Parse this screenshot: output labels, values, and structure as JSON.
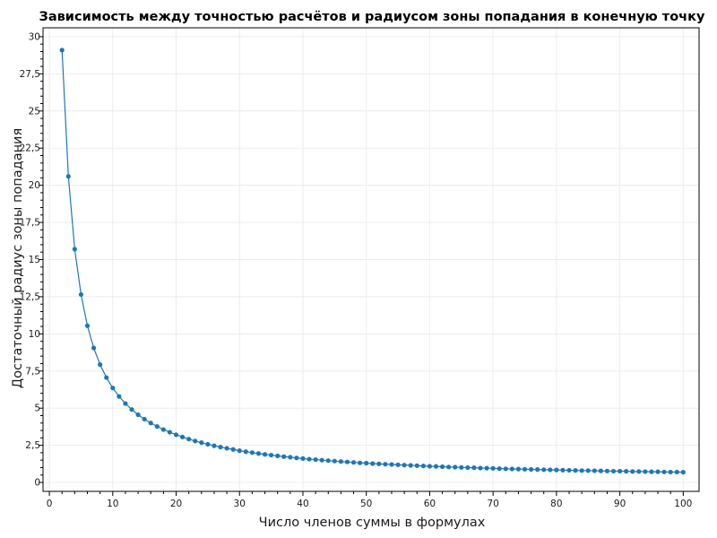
{
  "chart_data": {
    "type": "line",
    "title": "Зависимость между точностью расчётов и радиусом зоны попадания в конечную точку",
    "xlabel": "Число членов суммы в формулах",
    "ylabel": "Достаточный радиус зоны попадания",
    "xlim": [
      -1,
      102.5
    ],
    "ylim": [
      -0.6,
      30.6
    ],
    "x_ticks": [
      0,
      10,
      20,
      30,
      40,
      50,
      60,
      70,
      80,
      90,
      100
    ],
    "x_tick_labels": [
      "0",
      "10",
      "20",
      "30",
      "40",
      "50",
      "60",
      "70",
      "80",
      "90",
      "100"
    ],
    "y_ticks": [
      0,
      2.5,
      5,
      7.5,
      10,
      12.5,
      15,
      17.5,
      20,
      22.5,
      25,
      27.5,
      30
    ],
    "y_tick_labels": [
      "0",
      "2,5",
      "5",
      "7,5",
      "10",
      "12,5",
      "15",
      "17,5",
      "20",
      "22,5",
      "25",
      "27,5",
      "30"
    ],
    "grid": true,
    "legend": "none",
    "colors": {
      "series": "#1f77b4",
      "grid": "#ececec",
      "axis": "#000000"
    },
    "series": [
      {
        "x": [
          2,
          3,
          4,
          5,
          6,
          7,
          8,
          9,
          10,
          11,
          12,
          13,
          14,
          15,
          16,
          17,
          18,
          19,
          20,
          21,
          22,
          23,
          24,
          25,
          26,
          27,
          28,
          29,
          30,
          31,
          32,
          33,
          34,
          35,
          36,
          37,
          38,
          39,
          40,
          41,
          42,
          43,
          44,
          45,
          46,
          47,
          48,
          49,
          50,
          51,
          52,
          53,
          54,
          55,
          56,
          57,
          58,
          59,
          60,
          61,
          62,
          63,
          64,
          65,
          66,
          67,
          68,
          69,
          70,
          71,
          72,
          73,
          74,
          75,
          76,
          77,
          78,
          79,
          80,
          81,
          82,
          83,
          84,
          85,
          86,
          87,
          88,
          89,
          90,
          91,
          92,
          93,
          94,
          95,
          96,
          97,
          98,
          99,
          100
        ],
        "y": [
          29.1,
          20.6,
          15.7,
          12.65,
          10.55,
          9.05,
          7.93,
          7.06,
          6.36,
          5.79,
          5.31,
          4.91,
          4.56,
          4.26,
          4.0,
          3.77,
          3.56,
          3.38,
          3.21,
          3.06,
          2.92,
          2.79,
          2.68,
          2.57,
          2.47,
          2.38,
          2.3,
          2.22,
          2.14,
          2.07,
          2.01,
          1.95,
          1.89,
          1.84,
          1.79,
          1.74,
          1.7,
          1.65,
          1.61,
          1.57,
          1.54,
          1.5,
          1.47,
          1.44,
          1.41,
          1.38,
          1.35,
          1.32,
          1.3,
          1.27,
          1.25,
          1.23,
          1.21,
          1.19,
          1.17,
          1.15,
          1.13,
          1.11,
          1.09,
          1.08,
          1.06,
          1.04,
          1.03,
          1.01,
          1.0,
          0.99,
          0.97,
          0.96,
          0.95,
          0.93,
          0.92,
          0.91,
          0.9,
          0.89,
          0.88,
          0.87,
          0.86,
          0.85,
          0.84,
          0.83,
          0.82,
          0.81,
          0.8,
          0.8,
          0.79,
          0.78,
          0.77,
          0.76,
          0.76,
          0.75,
          0.74,
          0.74,
          0.73,
          0.72,
          0.72,
          0.71,
          0.7,
          0.7,
          0.69
        ]
      }
    ]
  }
}
